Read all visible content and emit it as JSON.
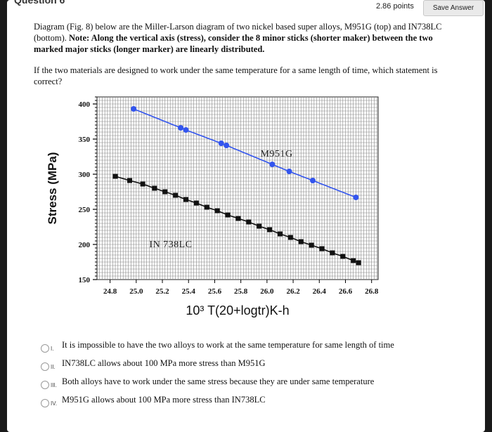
{
  "header": {
    "question_label": "Question 6",
    "points": "2.86 points",
    "save_label": "Save Answer"
  },
  "prompt": {
    "intro_plain": "Diagram (Fig. 8) below are the Miller-Larson diagram of two nickel based super alloys, M951G (top) and IN738LC (bottom). ",
    "intro_bold": "Note: Along the vertical axis (stress), consider the 8 minor sticks (shorter maker) between the two marked major sticks (longer marker) are linearly distributed.",
    "question": "If the two materials are designed to work under the same temperature for a same length of time, which statement is correct?"
  },
  "chart_data": {
    "type": "line",
    "xlabel": "10³ T(20+logtr)K-h",
    "ylabel": "Stress (MPa)",
    "xlim": [
      24.7,
      26.85
    ],
    "ylim": [
      150,
      410
    ],
    "xticks": [
      "24.8",
      "25.0",
      "25.2",
      "25.4",
      "25.6",
      "25.8",
      "26.0",
      "26.2",
      "26.4",
      "26.6",
      "26.8"
    ],
    "yticks": [
      "150",
      "200",
      "250",
      "300",
      "350",
      "400"
    ],
    "grid": true,
    "series": [
      {
        "name": "M951G",
        "color": "#3355ee",
        "marker": "circle",
        "x": [
          24.98,
          25.34,
          25.38,
          25.65,
          25.69,
          26.04,
          26.17,
          26.35,
          26.68
        ],
        "y": [
          393,
          366,
          363,
          344,
          341,
          314,
          304,
          291,
          267
        ]
      },
      {
        "name": "IN 738LC",
        "color": "#111111",
        "marker": "square",
        "x": [
          24.84,
          24.95,
          25.05,
          25.14,
          25.22,
          25.3,
          25.38,
          25.46,
          25.54,
          25.62,
          25.7,
          25.78,
          25.86,
          25.94,
          26.02,
          26.1,
          26.18,
          26.26,
          26.34,
          26.42,
          26.5,
          26.58,
          26.66,
          26.7
        ],
        "y": [
          297,
          291,
          286,
          280,
          275,
          270,
          264,
          259,
          253,
          248,
          242,
          237,
          232,
          226,
          221,
          215,
          210,
          204,
          199,
          194,
          188,
          183,
          177,
          174
        ]
      }
    ]
  },
  "options": [
    {
      "num": "I.",
      "text": "It is impossible to have the two alloys to work at the same temperature for same length of time"
    },
    {
      "num": "II.",
      "text": "IN738LC allows about 100 MPa more stress than M951G"
    },
    {
      "num": "III.",
      "text": "Both alloys have to work under the same stress because they are under same temperature"
    },
    {
      "num": "IV.",
      "text": "M951G allows about 100 MPa more stress than IN738LC"
    }
  ]
}
